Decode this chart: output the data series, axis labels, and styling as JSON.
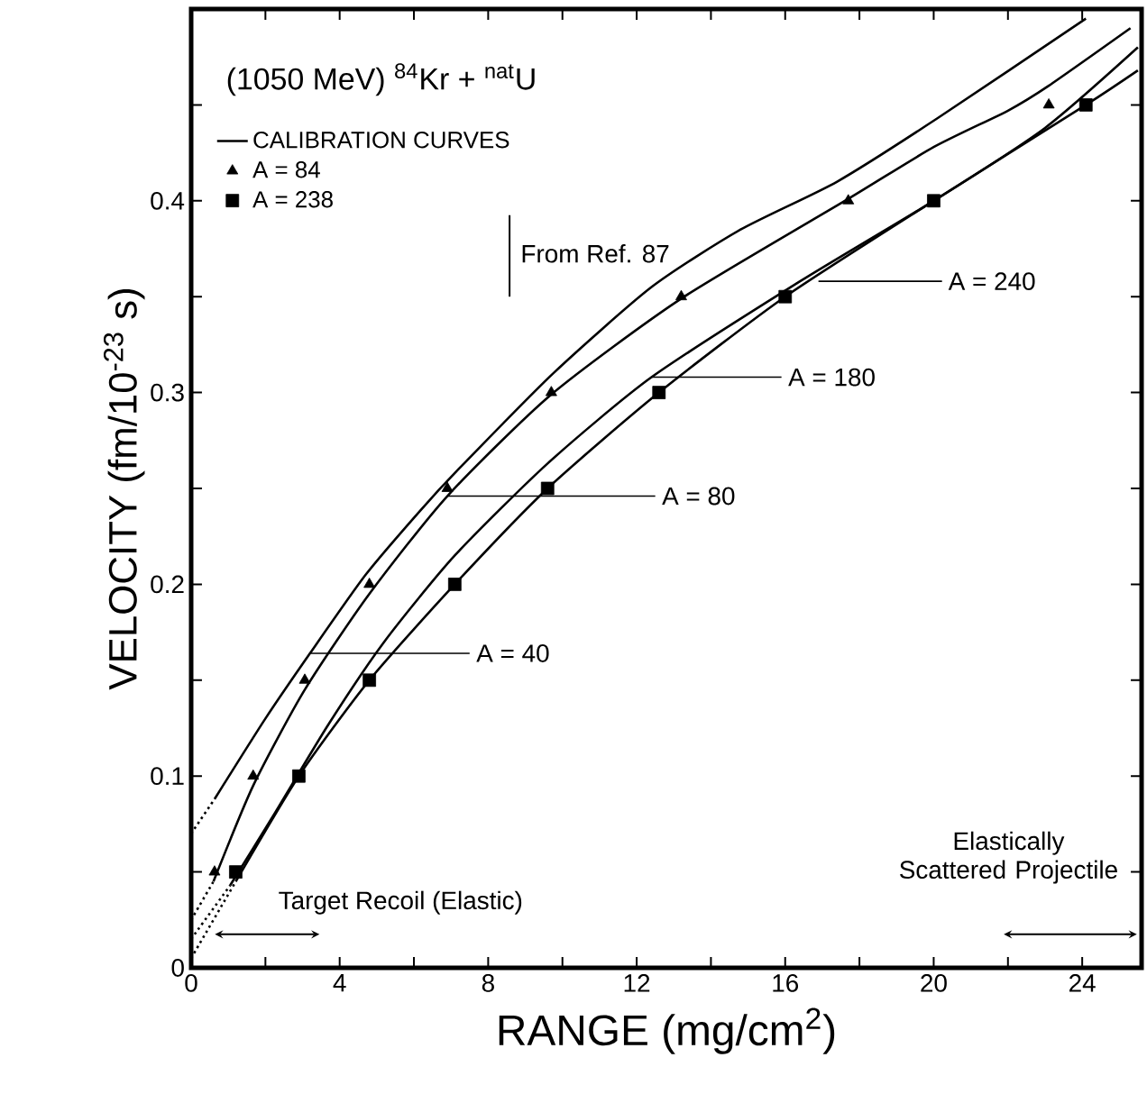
{
  "chart_data": {
    "type": "line",
    "title": "(1050 MeV) $^{84}$Kr + $^{nat}$U",
    "xlabel": "RANGE (mg/cm$^{2}$)",
    "ylabel": "VELOCITY (fm/10$^{-23}$ s)",
    "xlim": [
      0,
      25.6
    ],
    "ylim": [
      0,
      0.5
    ],
    "xticks": [
      0,
      {
        "value": 2,
        "label": null
      },
      4,
      {
        "value": 6,
        "label": null
      },
      8,
      {
        "value": 10,
        "label": null
      },
      12,
      {
        "value": 14,
        "label": null
      },
      16,
      {
        "value": 18,
        "label": null
      },
      20,
      {
        "value": 22,
        "label": null
      },
      24
    ],
    "yticks": [
      0,
      {
        "value": 0.05,
        "label": null
      },
      0.1,
      {
        "value": 0.15,
        "label": null
      },
      0.2,
      {
        "value": 0.25,
        "label": null
      },
      0.3,
      {
        "value": 0.35,
        "label": null
      },
      0.4,
      {
        "value": 0.45,
        "label": null
      }
    ],
    "grid": false,
    "legend": "top left",
    "series": [
      {
        "name": "CALIBRATION CURVES",
        "line_style": "solid",
        "color": "#000000",
        "x": [
          0.63,
          2.0,
          3.2,
          4.7,
          6.15,
          7.2,
          9.75,
          12.4,
          14.8,
          17.4,
          20.1,
          24.1
        ],
        "values": [
          0.088,
          0.13,
          0.164,
          0.205,
          0.238,
          0.26,
          0.31,
          0.355,
          0.385,
          0.41,
          0.443,
          0.495
        ]
      },
      {
        "line_style": "solid",
        "color": "#000000",
        "x": [
          0.6,
          1.67,
          3.06,
          4.8,
          6.9,
          9.7,
          13.2,
          17.7,
          20.0,
          22.0,
          23.1,
          25.3
        ],
        "values": [
          0.045,
          0.095,
          0.145,
          0.195,
          0.246,
          0.299,
          0.349,
          0.401,
          0.428,
          0.447,
          0.46,
          0.49
        ]
      },
      {
        "line_style": "solid",
        "color": "#000000",
        "x": [
          1.05,
          2.2,
          3.7,
          5.2,
          7.1,
          9.6,
          12.4,
          16.4,
          20.0,
          23.0,
          25.5
        ],
        "values": [
          0.043,
          0.079,
          0.127,
          0.17,
          0.215,
          0.263,
          0.308,
          0.358,
          0.4,
          0.438,
          0.48
        ]
      },
      {
        "line_style": "solid",
        "color": "#000000",
        "x": [
          1.2,
          2.9,
          4.8,
          7.1,
          9.6,
          12.6,
          16.0,
          20.0,
          24.1,
          25.5
        ],
        "values": [
          0.045,
          0.1,
          0.15,
          0.2,
          0.25,
          0.3,
          0.35,
          0.4,
          0.45,
          0.468
        ]
      },
      {
        "line_style": "dotted",
        "color": "#000000",
        "x": [
          0,
          0.63
        ],
        "values": [
          0.07,
          0.088
        ]
      },
      {
        "line_style": "dotted",
        "color": "#000000",
        "x": [
          0,
          0.6
        ],
        "values": [
          0.025,
          0.045
        ]
      },
      {
        "line_style": "dotted",
        "color": "#000000",
        "x": [
          0,
          1.05
        ],
        "values": [
          0.015,
          0.043
        ]
      },
      {
        "line_style": "dotted",
        "color": "#000000",
        "x": [
          0,
          1.2
        ],
        "values": [
          0.005,
          0.045
        ]
      },
      {
        "name": "A = 84",
        "type": "scatter",
        "marker": "triangle",
        "color": "#000000",
        "x": [
          0.63,
          1.67,
          3.06,
          4.8,
          6.9,
          9.7,
          13.2,
          17.7,
          23.1
        ],
        "values": [
          0.05,
          0.1,
          0.15,
          0.2,
          0.25,
          0.3,
          0.35,
          0.4,
          0.45
        ]
      },
      {
        "name": "A = 238",
        "type": "scatter",
        "marker": "square",
        "color": "#000000",
        "x": [
          1.2,
          2.9,
          4.8,
          7.1,
          9.6,
          12.6,
          16.0,
          20.0,
          24.1
        ],
        "values": [
          0.05,
          0.1,
          0.15,
          0.2,
          0.25,
          0.3,
          0.35,
          0.4,
          0.45
        ]
      }
    ],
    "annotations": [
      {
        "text": "A = 40",
        "x": 3.2,
        "y": 0.164
      },
      {
        "text": "A = 80",
        "x": 6.9,
        "y": 0.246
      },
      {
        "text": "A = 180",
        "x": 12.4,
        "y": 0.308
      },
      "A = 240",
      "From Ref. 87",
      "Target Recoil (Elastic)",
      "Elastically Scattered Projectile"
    ]
  }
}
